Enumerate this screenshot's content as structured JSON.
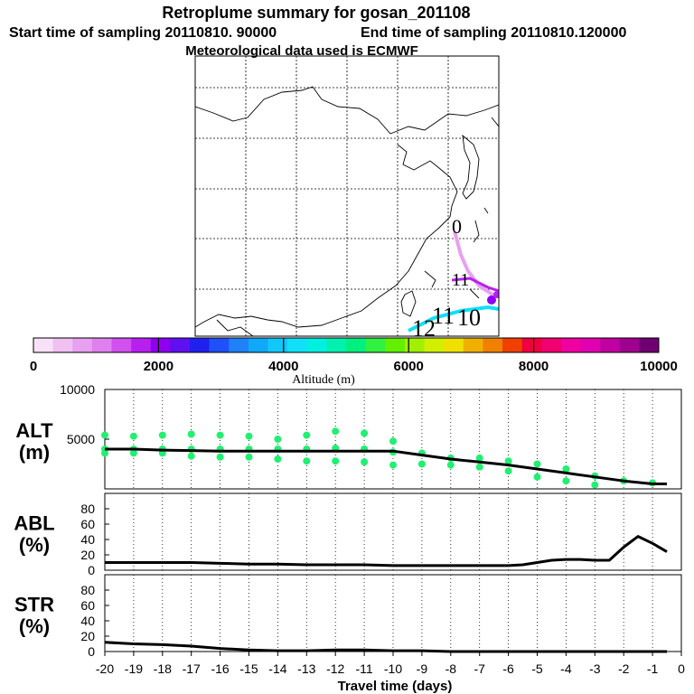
{
  "header": {
    "title": "Retroplume summary for gosan_201108",
    "start_label": "Start time of sampling 20110810. 90000",
    "end_label": "End time of sampling 20110810.120000",
    "met_label": "Meteorological data used is ECMWF"
  },
  "map": {
    "trajectory_labels": [
      "0",
      "11",
      "12",
      "11",
      "10"
    ],
    "colors": {
      "coast": "#000000",
      "grid": "#000000"
    }
  },
  "colorbar": {
    "title": "Altitude (m)",
    "tick_labels": [
      "0",
      "2000",
      "4000",
      "6000",
      "8000",
      "10000"
    ],
    "min": 0,
    "max": 10000,
    "colors": [
      "#f8e0f8",
      "#f0c0f0",
      "#e8a0f0",
      "#e080f0",
      "#d050f0",
      "#b820f0",
      "#9000f0",
      "#6010f0",
      "#2020f0",
      "#2050f8",
      "#2080f8",
      "#10a8f8",
      "#10c8f8",
      "#10e0f8",
      "#00f0e0",
      "#00f0b0",
      "#00f080",
      "#30f040",
      "#60f000",
      "#a0f000",
      "#d0f000",
      "#f0e000",
      "#f0b000",
      "#f08000",
      "#f04000",
      "#f00040",
      "#f00070",
      "#f000a0",
      "#e000b0",
      "#c000a0",
      "#a00090",
      "#700070"
    ]
  },
  "chart_data": [
    {
      "type": "line",
      "name": "ALT",
      "ylabel": "ALT",
      "unit": "(m)",
      "ylim": [
        0,
        10000
      ],
      "yticks": [
        0,
        5000,
        10000
      ],
      "ytick_labels": [
        "",
        "5000",
        "10000"
      ],
      "x": [
        -20,
        -19,
        -18,
        -17,
        -16,
        -15,
        -14,
        -13,
        -12,
        -11,
        -10,
        -9,
        -8,
        -7,
        -6,
        -5,
        -4,
        -3,
        -2,
        -1,
        -0.5
      ],
      "values": [
        4000,
        4000,
        3900,
        3850,
        3800,
        3800,
        3800,
        3800,
        3800,
        3800,
        3800,
        3400,
        3000,
        2700,
        2400,
        2000,
        1600,
        1200,
        800,
        500,
        500
      ],
      "scatter": {
        "color": "#20f070",
        "points": [
          [
            -20,
            5400
          ],
          [
            -20,
            4000
          ],
          [
            -20,
            3600
          ],
          [
            -19,
            5300
          ],
          [
            -19,
            4000
          ],
          [
            -19,
            3600
          ],
          [
            -18,
            5400
          ],
          [
            -18,
            4000
          ],
          [
            -18,
            3600
          ],
          [
            -17,
            5500
          ],
          [
            -17,
            4000
          ],
          [
            -17,
            3300
          ],
          [
            -16,
            5400
          ],
          [
            -16,
            4000
          ],
          [
            -16,
            3200
          ],
          [
            -15,
            5300
          ],
          [
            -15,
            4000
          ],
          [
            -15,
            3200
          ],
          [
            -14,
            5000
          ],
          [
            -14,
            4000
          ],
          [
            -14,
            3000
          ],
          [
            -13,
            5400
          ],
          [
            -13,
            4000
          ],
          [
            -13,
            2800
          ],
          [
            -12,
            5800
          ],
          [
            -12,
            4100
          ],
          [
            -12,
            2800
          ],
          [
            -11,
            5600
          ],
          [
            -11,
            4000
          ],
          [
            -11,
            2700
          ],
          [
            -10,
            4800
          ],
          [
            -10,
            3700
          ],
          [
            -10,
            2400
          ],
          [
            -9,
            3600
          ],
          [
            -9,
            2500
          ],
          [
            -8,
            3100
          ],
          [
            -8,
            2400
          ],
          [
            -7,
            3100
          ],
          [
            -7,
            2200
          ],
          [
            -6,
            2800
          ],
          [
            -6,
            1800
          ],
          [
            -5,
            2500
          ],
          [
            -5,
            1200
          ],
          [
            -4,
            2000
          ],
          [
            -4,
            800
          ],
          [
            -3,
            1300
          ],
          [
            -3,
            400
          ],
          [
            -2,
            800
          ],
          [
            -1,
            600
          ]
        ]
      }
    },
    {
      "type": "line",
      "name": "ABL",
      "ylabel": "ABL",
      "unit": "(%)",
      "ylim": [
        0,
        100
      ],
      "yticks": [
        0,
        20,
        40,
        60,
        80
      ],
      "ytick_labels": [
        "0",
        "20",
        "40",
        "60",
        "80"
      ],
      "x": [
        -20,
        -19,
        -18,
        -17,
        -16,
        -15,
        -14,
        -13,
        -12,
        -11,
        -10,
        -9,
        -8,
        -7,
        -6,
        -5.5,
        -5,
        -4.5,
        -4,
        -3.5,
        -3,
        -2.5,
        -2,
        -1.5,
        -1,
        -0.5
      ],
      "values": [
        10,
        10,
        10,
        10,
        9,
        8,
        8,
        7,
        7,
        7,
        6,
        6,
        6,
        6,
        6,
        7,
        10,
        13,
        14,
        14,
        13,
        13,
        30,
        44,
        35,
        24
      ]
    },
    {
      "type": "line",
      "name": "STR",
      "ylabel": "STR",
      "unit": "(%)",
      "ylim": [
        0,
        100
      ],
      "yticks": [
        0,
        20,
        40,
        60,
        80
      ],
      "ytick_labels": [
        "0",
        "20",
        "40",
        "60",
        "80"
      ],
      "x": [
        -20,
        -19,
        -18,
        -17,
        -16,
        -15,
        -14,
        -13,
        -12,
        -11,
        -10,
        -9,
        -8,
        -7,
        -6,
        -5,
        -4,
        -3,
        -2,
        -1,
        -0.5
      ],
      "values": [
        12,
        10,
        9,
        7,
        4,
        2,
        1,
        1,
        2,
        2,
        1,
        1,
        0,
        0,
        0,
        0,
        0,
        0,
        0,
        0,
        0
      ]
    }
  ],
  "xaxis": {
    "xlabel": "Travel time (days)",
    "xlim": [
      -20,
      0
    ],
    "ticks": [
      -20,
      -19,
      -18,
      -17,
      -16,
      -15,
      -14,
      -13,
      -12,
      -11,
      -10,
      -9,
      -8,
      -7,
      -6,
      -5,
      -4,
      -3,
      -2,
      -1,
      0
    ],
    "tick_labels": [
      "-20",
      "-19",
      "-18",
      "-17",
      "-16",
      "-15",
      "-14",
      "-13",
      "-12",
      "-11",
      "-10",
      "-9",
      "-8",
      "-7",
      "-6",
      "-5",
      "-4",
      "-3",
      "-2",
      "-1",
      "0"
    ]
  }
}
